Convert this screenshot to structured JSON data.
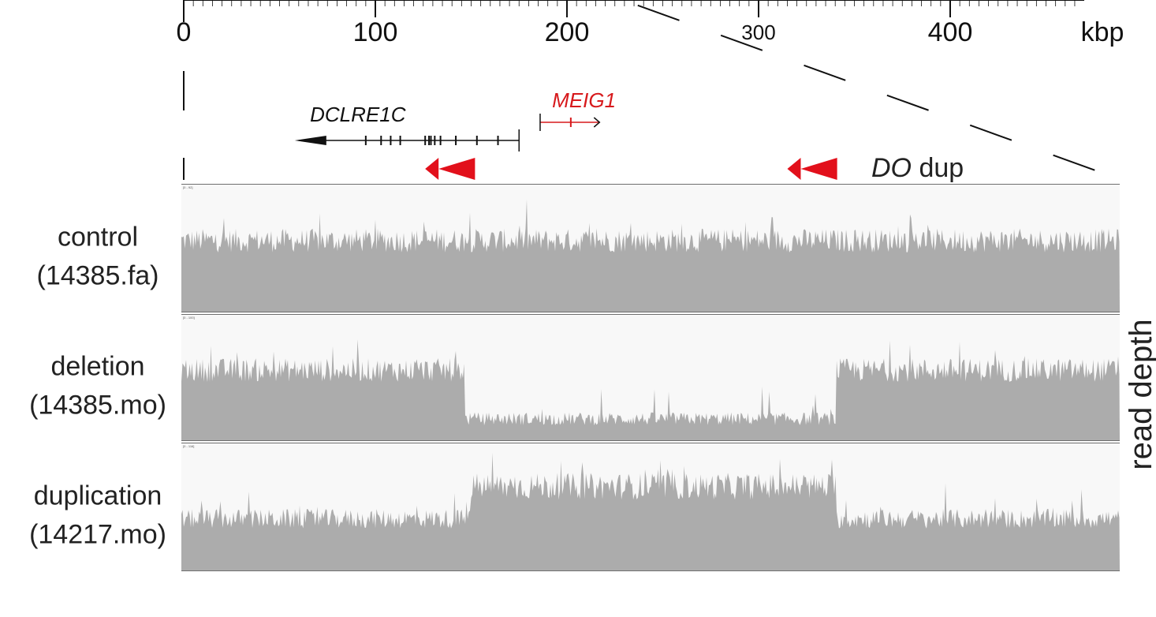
{
  "chart_data": {
    "type": "area",
    "title": "",
    "xlabel": "kbp",
    "ylabel": "read depth",
    "x_unit": "kbp",
    "xlim": [
      0,
      470
    ],
    "x_ticks": [
      {
        "value": 0,
        "label": "0"
      },
      {
        "value": 100,
        "label": "100"
      },
      {
        "value": 200,
        "label": "200"
      },
      {
        "value": 300,
        "label": "300"
      },
      {
        "value": 400,
        "label": "400"
      }
    ],
    "zoom_from": [
      0,
      470
    ],
    "genes": [
      {
        "name": "DCLRE1C",
        "start": 60,
        "end": 175,
        "strand": "-",
        "color": "#111111",
        "exons": [
          95,
          103,
          108,
          113,
          126,
          128,
          129,
          131,
          134,
          142,
          153,
          164
        ]
      },
      {
        "name": "MEIG1",
        "start": 186,
        "end": 217,
        "strand": "+",
        "color": "#d7191c",
        "exons": [
          202
        ]
      }
    ],
    "duplications": {
      "label_italic": "DO",
      "label_plain": " dup",
      "color": "#e2101b",
      "arrows": [
        {
          "start": 126,
          "end": 133
        },
        {
          "start": 133,
          "end": 152
        },
        {
          "start": 315,
          "end": 322
        },
        {
          "start": 322,
          "end": 341
        }
      ]
    },
    "series": [
      {
        "name": "control",
        "sample_id": "(14385.fa)",
        "range_label": "[0 - 92]",
        "segments": [
          {
            "from": 0,
            "to": 470,
            "level": 0.55
          }
        ]
      },
      {
        "name": "deletion",
        "sample_id": "(14385.mo)",
        "range_label": "[0 - 100]",
        "segments": [
          {
            "from": 0,
            "to": 142,
            "level": 0.55
          },
          {
            "from": 142,
            "to": 328,
            "level": 0.17
          },
          {
            "from": 328,
            "to": 470,
            "level": 0.55
          }
        ]
      },
      {
        "name": "duplication",
        "sample_id": "(14217.mo)",
        "range_label": "[0 - 116]",
        "segments": [
          {
            "from": 0,
            "to": 145,
            "level": 0.4
          },
          {
            "from": 145,
            "to": 328,
            "level": 0.65
          },
          {
            "from": 328,
            "to": 470,
            "level": 0.4
          }
        ]
      }
    ],
    "colors": {
      "coverage": "#acacac",
      "track_bg": "#f8f8f8",
      "track_border": "#6e6e6e",
      "duplication": "#e2101b",
      "meig1": "#d7191c",
      "axis": "#111111"
    },
    "grid": false,
    "legend": "none"
  }
}
